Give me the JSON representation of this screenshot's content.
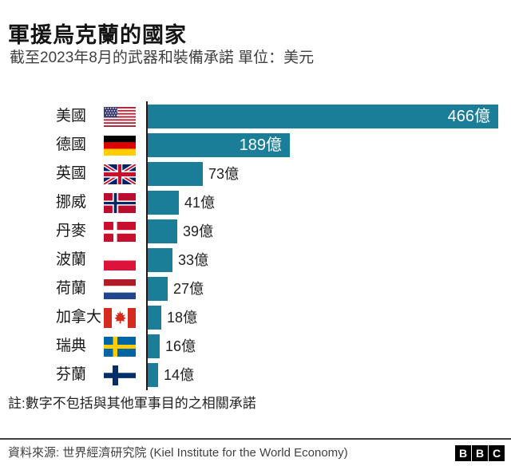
{
  "header": {
    "title": "軍援烏克蘭的國家",
    "subtitle": "截至2023年8月的武器和裝備承諾 單位：美元"
  },
  "chart_data": {
    "type": "bar",
    "orientation": "horizontal",
    "title": "軍援烏克蘭的國家",
    "subtitle": "截至2023年8月的武器和裝備承諾 單位：美元",
    "unit_suffix": "億",
    "currency": "美元",
    "categories": [
      "美國",
      "德國",
      "英國",
      "挪威",
      "丹麥",
      "波蘭",
      "荷蘭",
      "加拿大",
      "瑞典",
      "芬蘭"
    ],
    "values": [
      466,
      189,
      73,
      41,
      39,
      33,
      27,
      18,
      16,
      14
    ],
    "value_labels": [
      "466億",
      "189億",
      "73億",
      "41億",
      "39億",
      "33億",
      "27億",
      "18億",
      "16億",
      "14億"
    ],
    "flags": [
      "us",
      "de",
      "gb",
      "no",
      "dk",
      "pl",
      "nl",
      "ca",
      "se",
      "fi"
    ],
    "bar_color": "#1B7E99",
    "xlim": [
      0,
      466
    ],
    "grid": false,
    "legend": false
  },
  "note": "註:數字不包括與其他軍事目的之相關承諾",
  "footer": {
    "source": "資料來源: 世界經濟研究院 (Kiel Institute for the World Economy)",
    "logo_letters": [
      "B",
      "B",
      "C"
    ]
  }
}
